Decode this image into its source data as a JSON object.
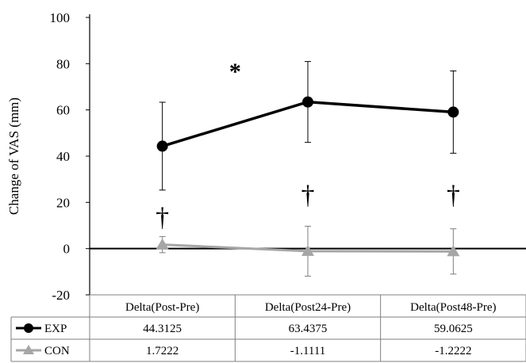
{
  "chart_data": {
    "type": "line",
    "ylabel": "Change of VAS (mm)",
    "ylim": [
      -20,
      100
    ],
    "yticks": [
      -20,
      0,
      20,
      40,
      60,
      80,
      100
    ],
    "categories": [
      "Delta(Post-Pre)",
      "Delta(Post24-Pre)",
      "Delta(Post48-Pre)"
    ],
    "series": [
      {
        "name": "EXP",
        "values": [
          44.3125,
          63.4375,
          59.0625
        ],
        "value_labels": [
          "44.3125",
          "63.4375",
          "59.0625"
        ],
        "error": [
          19,
          17.5,
          17.8
        ],
        "color": "#000000",
        "marker": "circle"
      },
      {
        "name": "CON",
        "values": [
          1.7222,
          -1.1111,
          -1.2222
        ],
        "value_labels": [
          "1.7222",
          "-1.1111",
          "-1.2222"
        ],
        "error": [
          3.5,
          10.8,
          9.8
        ],
        "color": "#a6a6a6",
        "marker": "triangle"
      }
    ],
    "annotations": [
      {
        "text": "*",
        "between": [
          "Delta(Post-Pre)",
          "Delta(Post24-Pre)"
        ]
      },
      {
        "text": "†",
        "category": "Delta(Post-Pre)"
      },
      {
        "text": "†",
        "category": "Delta(Post24-Pre)"
      },
      {
        "text": "†",
        "category": "Delta(Post48-Pre)"
      }
    ],
    "grid": false,
    "legend": "data-table-bottom"
  }
}
